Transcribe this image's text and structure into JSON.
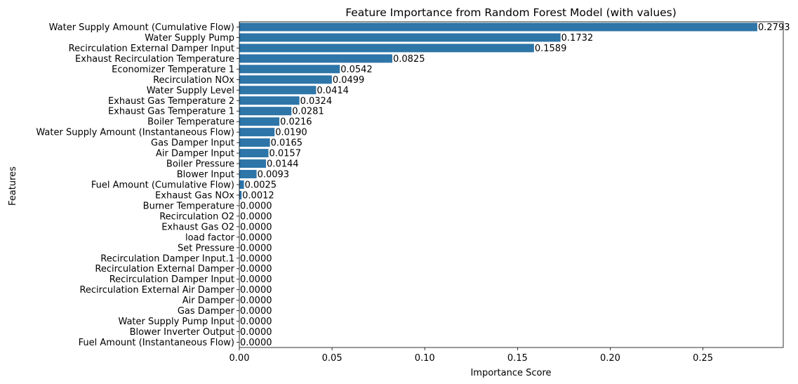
{
  "chart_data": {
    "type": "bar",
    "orientation": "horizontal",
    "title": "Feature Importance from Random Forest Model (with values)",
    "xlabel": "Importance Score",
    "ylabel": "Features",
    "xlim": [
      0,
      0.2933
    ],
    "xticks": [
      0,
      0.05,
      0.1,
      0.15,
      0.2,
      0.25
    ],
    "xtick_labels": [
      "0.00",
      "0.05",
      "0.10",
      "0.15",
      "0.20",
      "0.25"
    ],
    "bar_color": "#2e75a8",
    "grid": false,
    "categories": [
      "Water Supply Amount (Cumulative Flow)",
      "Water Supply Pump",
      "Recirculation External Damper Input",
      "Exhaust Recirculation Temperature",
      "Economizer Temperature 1",
      "Recirculation NOx",
      "Water Supply Level",
      "Exhaust Gas Temperature 2",
      "Exhaust Gas Temperature 1",
      "Boiler Temperature",
      "Water Supply Amount (Instantaneous Flow)",
      "Gas Damper Input",
      "Air Damper Input",
      "Boiler Pressure",
      "Blower Input",
      "Fuel Amount (Cumulative Flow)",
      "Exhaust Gas NOx",
      "Burner Temperature",
      "Recirculation O2",
      "Exhaust Gas O2",
      "load factor",
      "Set Pressure",
      "Recirculation Damper Input.1",
      "Recirculation External Damper",
      "Recirculation Damper Input",
      "Recirculation External Air Damper",
      "Air Damper",
      "Gas Damper",
      "Water Supply Pump Input",
      "Blower Inverter Output",
      "Fuel Amount (Instantaneous Flow)"
    ],
    "values": [
      0.2793,
      0.1732,
      0.1589,
      0.0825,
      0.0542,
      0.0499,
      0.0414,
      0.0324,
      0.0281,
      0.0216,
      0.019,
      0.0165,
      0.0157,
      0.0144,
      0.0093,
      0.0025,
      0.0012,
      0,
      0,
      0,
      0,
      0,
      0,
      0,
      0,
      0,
      0,
      0,
      0,
      0,
      0
    ],
    "value_labels": [
      "0.2793",
      "0.1732",
      "0.1589",
      "0.0825",
      "0.0542",
      "0.0499",
      "0.0414",
      "0.0324",
      "0.0281",
      "0.0216",
      "0.0190",
      "0.0165",
      "0.0157",
      "0.0144",
      "0.0093",
      "0.0025",
      "0.0012",
      "0.0000",
      "0.0000",
      "0.0000",
      "0.0000",
      "0.0000",
      "0.0000",
      "0.0000",
      "0.0000",
      "0.0000",
      "0.0000",
      "0.0000",
      "0.0000",
      "0.0000",
      "0.0000"
    ]
  }
}
